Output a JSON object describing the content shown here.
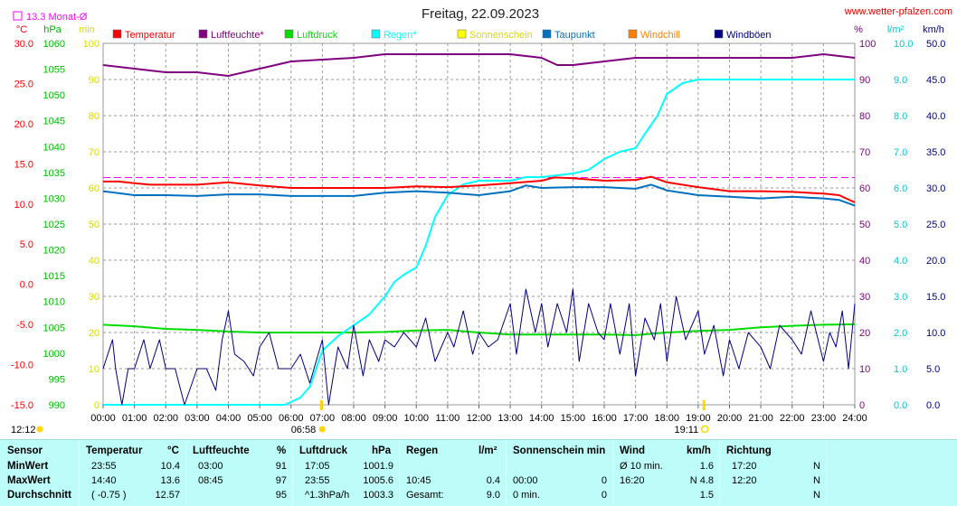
{
  "title": "Freitag, 22.09.2023",
  "website": "www.wetter-pfalzen.com",
  "avg_label": "13.3 Monat-Ø",
  "chart_data": {
    "type": "line",
    "x_ticks": [
      "00:00",
      "01:00",
      "02:00",
      "03:00",
      "04:00",
      "05:00",
      "06:00",
      "07:00",
      "08:00",
      "09:00",
      "10:00",
      "11:00",
      "12:00",
      "13:00",
      "14:00",
      "15:00",
      "16:00",
      "17:00",
      "18:00",
      "19:00",
      "20:00",
      "21:00",
      "22:00",
      "23:00",
      "24:00"
    ],
    "sunrise": "06:58",
    "sunset": "19:11",
    "time_marker": "12:12",
    "axes": {
      "temperature": {
        "unit": "°C",
        "range": [
          -15,
          30
        ],
        "ticks": [
          "30.0",
          "25.0",
          "20.0",
          "15.0",
          "10.0",
          "5.0",
          "0.0",
          "-5.0",
          "-10.0",
          "-15.0"
        ],
        "color": "#ff0000"
      },
      "pressure": {
        "unit": "hPa",
        "range": [
          990,
          1060
        ],
        "ticks": [
          "1060",
          "1055",
          "1050",
          "1045",
          "1040",
          "1035",
          "1030",
          "1025",
          "1020",
          "1015",
          "1010",
          "1005",
          "1000",
          "995",
          "990"
        ],
        "color": "#00bb00"
      },
      "sunshine": {
        "unit": "min",
        "range": [
          0,
          100
        ],
        "ticks": [
          "100",
          "90",
          "80",
          "70",
          "60",
          "50",
          "40",
          "30",
          "20",
          "10",
          "0"
        ],
        "color": "#dddd00"
      },
      "humidity": {
        "unit": "%",
        "range": [
          0,
          100
        ],
        "ticks": [
          "100",
          "90",
          "80",
          "70",
          "60",
          "50",
          "40",
          "30",
          "20",
          "10",
          "0"
        ],
        "color": "#800080"
      },
      "rain": {
        "unit": "l/m²",
        "range": [
          0,
          10
        ],
        "ticks": [
          "10.0",
          "9.0",
          "8.0",
          "7.0",
          "6.0",
          "5.0",
          "4.0",
          "3.0",
          "2.0",
          "1.0",
          "0.0"
        ],
        "color": "#00dddd"
      },
      "wind": {
        "unit": "km/h",
        "range": [
          0,
          50
        ],
        "ticks": [
          "50.0",
          "45.0",
          "40.0",
          "35.0",
          "30.0",
          "25.0",
          "20.0",
          "15.0",
          "10.0",
          "5.0",
          "0.0"
        ],
        "color": "#000080"
      }
    },
    "legend": [
      {
        "name": "Temperatur",
        "color": "#ff0000"
      },
      {
        "name": "Luftfeuchte*",
        "color": "#800080"
      },
      {
        "name": "Luftdruck",
        "color": "#00dd00"
      },
      {
        "name": "Regen*",
        "color": "#00ffff"
      },
      {
        "name": "Sonnenschein",
        "color": "#ffff00"
      },
      {
        "name": "Taupunkt",
        "color": "#0070c0"
      },
      {
        "name": "Windchill",
        "color": "#ff8000"
      },
      {
        "name": "Windböen",
        "color": "#000080"
      }
    ],
    "monthly_avg_temperature": 13.3,
    "series": [
      {
        "name": "Temperatur",
        "axis": "temperature",
        "color": "#ff0000",
        "x": [
          0,
          0.5,
          1,
          1.5,
          2,
          3,
          4,
          5,
          6,
          7,
          8,
          9,
          10,
          11,
          12,
          13,
          14,
          14.4,
          15,
          16,
          17,
          17.5,
          18,
          19,
          20,
          21,
          22,
          23,
          23.5,
          24
        ],
        "y": [
          12.8,
          12.8,
          12.6,
          12.4,
          12.4,
          12.4,
          12.7,
          12.3,
          12.0,
          12.0,
          12.0,
          12.0,
          12.2,
          12.1,
          12.3,
          12.6,
          12.9,
          13.3,
          13.2,
          12.9,
          13.0,
          13.4,
          12.7,
          12.1,
          11.6,
          11.6,
          11.5,
          11.3,
          11.1,
          10.2
        ]
      },
      {
        "name": "Taupunkt",
        "axis": "temperature",
        "color": "#0070c0",
        "x": [
          0,
          1,
          2,
          3,
          4,
          5,
          6,
          7,
          8,
          9,
          10,
          11,
          12,
          13,
          13.5,
          14,
          15,
          16,
          17,
          17.5,
          18,
          19,
          20,
          21,
          22,
          23,
          23.5,
          24
        ],
        "y": [
          11.6,
          11.1,
          11.1,
          11.0,
          11.2,
          11.2,
          11.0,
          11.0,
          11.0,
          11.4,
          11.6,
          11.4,
          11.1,
          11.6,
          12.3,
          12.0,
          12.1,
          12.1,
          11.9,
          12.4,
          11.7,
          11.1,
          10.9,
          10.7,
          10.9,
          10.7,
          10.5,
          9.8
        ]
      },
      {
        "name": "Luftfeuchte*",
        "axis": "humidity",
        "color": "#800080",
        "x": [
          0,
          1,
          2,
          3,
          4,
          5,
          6,
          7,
          8,
          9,
          10,
          11,
          12,
          13,
          14,
          14.5,
          15,
          16,
          17,
          18,
          19,
          20,
          21,
          22,
          23,
          24
        ],
        "y": [
          94,
          93,
          92,
          92,
          91,
          93,
          95,
          95.5,
          96,
          97,
          97,
          97,
          97,
          97,
          96,
          94,
          94,
          95,
          96,
          96,
          96,
          96,
          96,
          96,
          97,
          96
        ]
      },
      {
        "name": "Luftdruck",
        "axis": "pressure",
        "color": "#00dd00",
        "x": [
          0,
          1,
          2,
          3,
          4,
          5,
          6,
          7,
          8,
          9,
          10,
          11,
          12,
          13,
          14,
          15,
          16,
          17,
          18,
          19,
          20,
          21,
          22,
          23,
          24
        ],
        "y": [
          1005.5,
          1005.2,
          1004.7,
          1004.5,
          1004.2,
          1004.0,
          1004.0,
          1004.0,
          1004.0,
          1004.1,
          1004.4,
          1004.5,
          1004.0,
          1003.6,
          1003.6,
          1003.6,
          1003.6,
          1003.5,
          1004.0,
          1004.3,
          1004.5,
          1005.0,
          1005.3,
          1005.5,
          1005.6
        ]
      },
      {
        "name": "Regen*",
        "axis": "rain",
        "color": "#00ffff",
        "x": [
          0,
          5.8,
          6.3,
          6.6,
          7,
          7.5,
          8,
          8.5,
          9,
          9.3,
          9.6,
          10,
          10.3,
          10.6,
          11,
          11.5,
          12,
          13,
          13.5,
          14,
          15,
          15.5,
          16,
          16.5,
          17,
          17.3,
          17.7,
          18,
          18.5,
          19,
          20,
          24
        ],
        "y": [
          0,
          0,
          0.2,
          0.5,
          1.5,
          1.9,
          2.2,
          2.5,
          3.0,
          3.4,
          3.6,
          3.8,
          4.4,
          5.2,
          5.8,
          6.1,
          6.2,
          6.2,
          6.3,
          6.3,
          6.4,
          6.5,
          6.8,
          7.0,
          7.1,
          7.5,
          8.0,
          8.6,
          8.9,
          9.0,
          9.0,
          9.0
        ]
      },
      {
        "name": "Windböen",
        "axis": "wind",
        "color": "#000080",
        "x": [
          0,
          0.3,
          0.4,
          0.6,
          0.8,
          1,
          1.3,
          1.5,
          1.8,
          2,
          2.3,
          2.6,
          3,
          3.3,
          3.6,
          3.8,
          4,
          4.2,
          4.5,
          4.8,
          5,
          5.3,
          5.6,
          6,
          6.3,
          6.6,
          7,
          7.2,
          7.5,
          7.8,
          8,
          8.3,
          8.5,
          8.8,
          9,
          9.3,
          9.6,
          10,
          10.3,
          10.6,
          11,
          11.2,
          11.5,
          11.8,
          12,
          12.3,
          12.6,
          13,
          13.2,
          13.5,
          13.8,
          14,
          14.2,
          14.5,
          14.8,
          15,
          15.2,
          15.5,
          15.8,
          16,
          16.2,
          16.5,
          16.8,
          17,
          17.3,
          17.6,
          17.8,
          18,
          18.3,
          18.6,
          19,
          19.2,
          19.5,
          19.8,
          20,
          20.3,
          20.6,
          21,
          21.3,
          21.6,
          22,
          22.3,
          22.6,
          23,
          23.2,
          23.4,
          23.6,
          23.8,
          24
        ],
        "y": [
          5,
          9,
          5,
          0,
          5,
          5,
          9,
          5,
          9,
          5,
          5,
          0,
          5,
          5,
          2,
          9,
          13,
          7,
          6,
          4,
          8,
          10,
          5,
          5,
          7,
          3,
          9,
          0,
          8,
          5,
          11,
          4,
          9,
          6,
          9,
          8,
          10,
          8,
          12,
          6,
          10,
          8,
          13,
          7,
          10,
          8,
          9,
          14,
          7,
          16,
          10,
          14,
          8,
          14,
          10,
          16,
          6,
          14,
          10,
          9,
          14,
          7,
          14,
          4,
          12,
          9,
          14,
          6,
          15,
          9,
          13,
          7,
          11,
          4,
          9,
          5,
          10,
          8,
          5,
          11,
          9,
          7,
          13,
          6,
          10,
          8,
          13,
          5,
          14
        ]
      }
    ]
  },
  "stats": {
    "headers": {
      "sensor": "Sensor",
      "temperatur": "Temperatur",
      "temp_unit": "°C",
      "luftfeuchte": "Luftfeuchte",
      "hum_unit": "%",
      "luftdruck": "Luftdruck",
      "press_unit": "hPa",
      "regen": "Regen",
      "rain_unit": "l/m²",
      "sonnenschein": "Sonnenschein min",
      "wind": "Wind",
      "wind_unit": "km/h",
      "richtung": "Richtung"
    },
    "rows": [
      {
        "label": "MinWert",
        "temp_time": "23:55",
        "temp_val": "10.4",
        "hum_time": "03:00",
        "hum_val": "91",
        "press_time": "17:05",
        "press_val": "1001.9",
        "rain_time": "",
        "rain_val": "",
        "sun_time": "",
        "sun_val": "",
        "wind_time": "Ø 10 min.",
        "wind_val": "1.6",
        "dir_time": "17:20",
        "dir_val": "N"
      },
      {
        "label": "MaxWert",
        "temp_time": "14:40",
        "temp_val": "13.6",
        "hum_time": "08:45",
        "hum_val": "97",
        "press_time": "23:55",
        "press_val": "1005.6",
        "rain_time": "10:45",
        "rain_val": "0.4",
        "sun_time": "00:00",
        "sun_val": "0",
        "wind_time": "16:20",
        "wind_val": "N 4.8",
        "dir_time": "12:20",
        "dir_val": "N"
      },
      {
        "label": "Durchschnitt",
        "temp_time": "( -0.75 )",
        "temp_val": "12.57",
        "hum_time": "",
        "hum_val": "95",
        "press_time": "^1.3hPa/h",
        "press_val": "1003.3",
        "rain_time": "Gesamt:",
        "rain_val": "9.0",
        "sun_time": "0 min.",
        "sun_val": "0",
        "wind_time": "",
        "wind_val": "1.5",
        "dir_time": "",
        "dir_val": "N"
      }
    ]
  }
}
